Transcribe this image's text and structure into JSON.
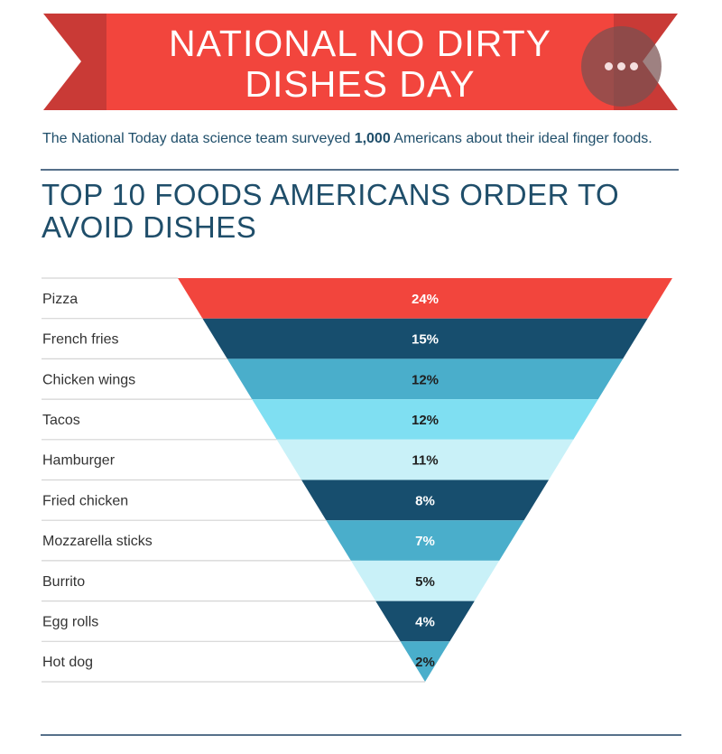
{
  "header": {
    "title": "NATIONAL NO DIRTY DISHES DAY",
    "title_line1": "NATIONAL NO DIRTY",
    "title_line2": "DISHES DAY"
  },
  "intro": {
    "prefix": "The National Today data science team surveyed ",
    "count": "1,000",
    "suffix": " Americans about their ideal finger foods."
  },
  "chart_data": {
    "type": "bar",
    "title": "TOP 10 FOODS AMERICANS ORDER TO AVOID DISHES",
    "title_line1": "TOP 10 FOODS AMERICANS ORDER TO",
    "title_line2": "AVOID DISHES",
    "categories": [
      "Pizza",
      "French fries",
      "Chicken wings",
      "Tacos",
      "Hamburger",
      "Fried chicken",
      "Mozzarella sticks",
      "Burrito",
      "Egg rolls",
      "Hot dog"
    ],
    "values": [
      24,
      15,
      12,
      12,
      11,
      8,
      7,
      5,
      4,
      2
    ],
    "value_labels": [
      "24%",
      "15%",
      "12%",
      "12%",
      "11%",
      "8%",
      "7%",
      "5%",
      "4%",
      "2%"
    ],
    "unit": "%",
    "shape": "inverted funnel",
    "colors": [
      "#f2453d",
      "#174e6e",
      "#4aaecb",
      "#7fdff2",
      "#c9f1f8",
      "#174e6e",
      "#4aaecb",
      "#c9f1f8",
      "#174e6e",
      "#4aaecb"
    ],
    "label_colors": [
      "#ffffff",
      "#ffffff",
      "#1f1f1f",
      "#1f1f1f",
      "#1f1f1f",
      "#ffffff",
      "#ffffff",
      "#1f1f1f",
      "#ffffff",
      "#1f1f1f"
    ]
  },
  "colors": {
    "banner_red": "#f2453d",
    "banner_dark_red": "#c93a36",
    "navy": "#1f4e6a"
  }
}
